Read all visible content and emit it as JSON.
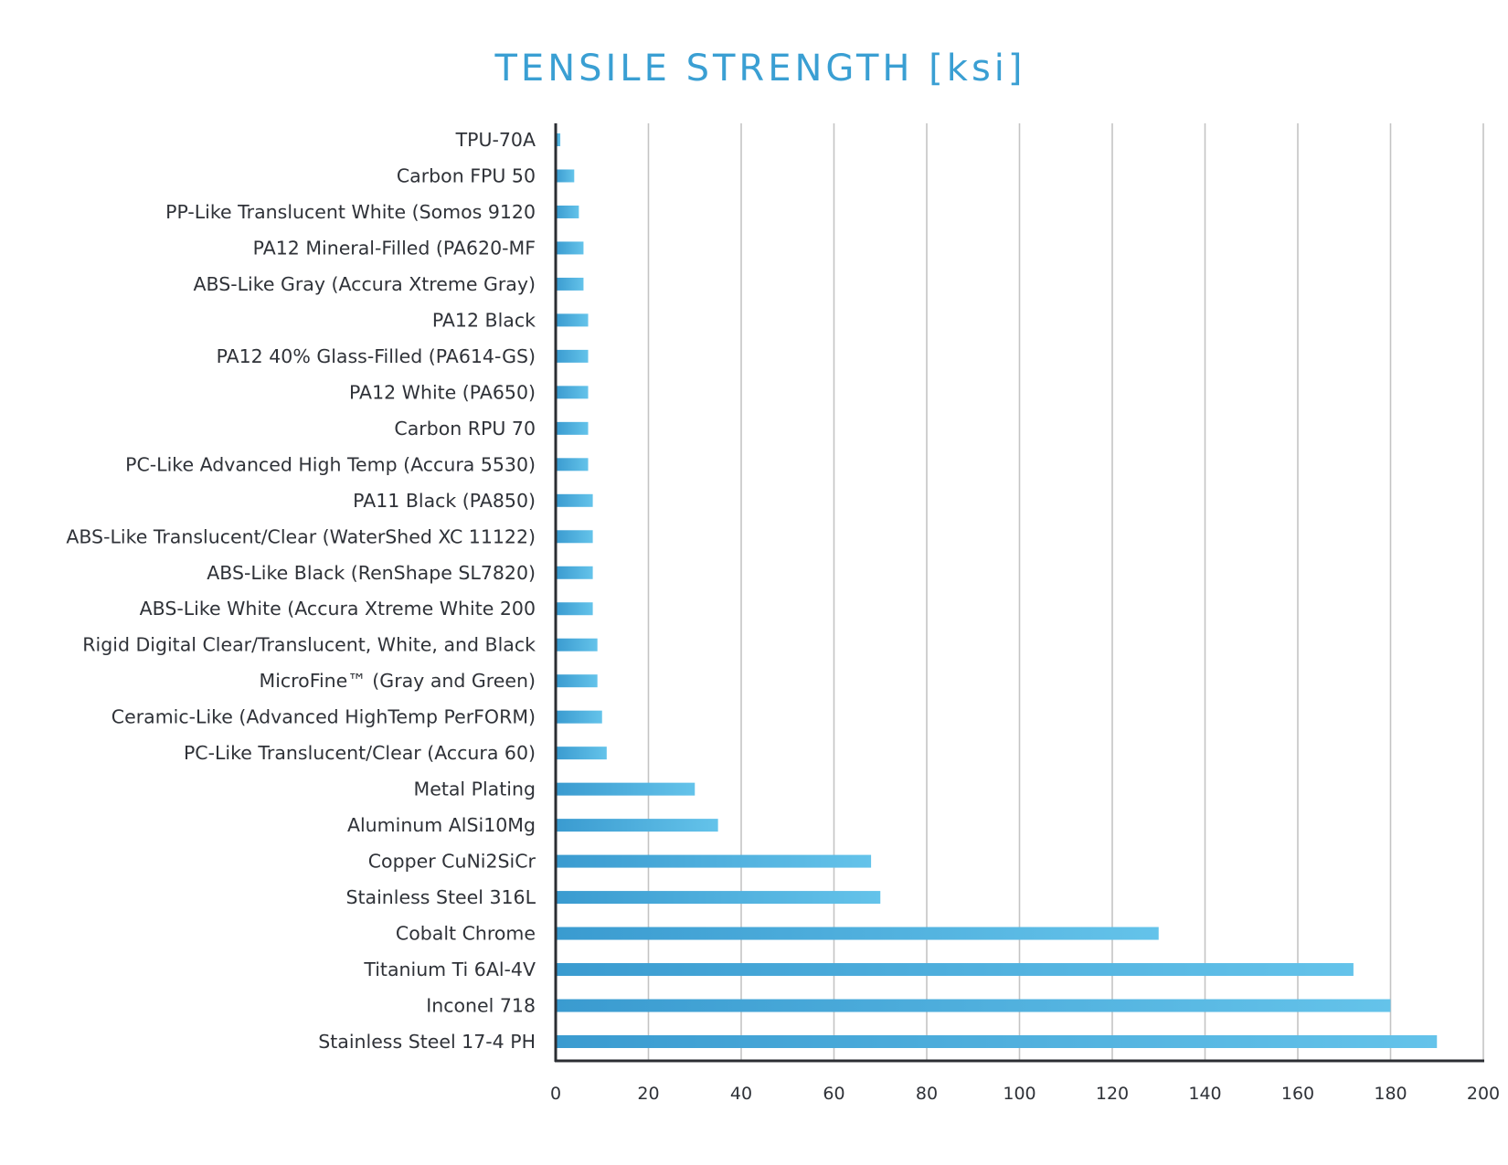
{
  "chart_data": {
    "type": "bar",
    "orientation": "horizontal",
    "title": "TENSILE STRENGTH [ksi]",
    "xlabel": "",
    "ylabel": "",
    "xlim": [
      0,
      200
    ],
    "x_ticks": [
      0,
      20,
      40,
      60,
      80,
      100,
      120,
      140,
      160,
      180,
      200
    ],
    "grid": "vertical",
    "legend": "none",
    "colors": {
      "bar_start": "#3a9bd0",
      "bar_end": "#64c3ea",
      "title": "#3a9fd3",
      "text": "#2f3238",
      "grid": "#c4c4c4",
      "axis": "#2b2e33"
    },
    "categories": [
      "TPU-70A",
      "Carbon FPU 50",
      "PP-Like Translucent White (Somos 9120",
      "PA12 Mineral-Filled (PA620-MF",
      "ABS-Like Gray (Accura Xtreme Gray)",
      "PA12 Black",
      "PA12 40% Glass-Filled (PA614-GS)",
      "PA12 White (PA650)",
      "Carbon RPU 70",
      "PC-Like Advanced High Temp (Accura 5530)",
      "PA11 Black (PA850)",
      "ABS-Like Translucent/Clear (WaterShed XC 11122)",
      "ABS-Like Black (RenShape SL7820)",
      "ABS-Like White (Accura Xtreme White 200",
      "Rigid Digital Clear/Translucent, White, and Black",
      "MicroFine™ (Gray and Green)",
      "Ceramic-Like (Advanced HighTemp PerFORM)",
      "PC-Like Translucent/Clear (Accura 60)",
      "Metal Plating",
      "Aluminum AlSi10Mg",
      "Copper CuNi2SiCr",
      "Stainless Steel 316L",
      "Cobalt Chrome",
      "Titanium Ti 6Al-4V",
      "Inconel 718",
      "Stainless Steel 17-4 PH"
    ],
    "values": [
      1,
      4,
      5,
      6,
      6,
      7,
      7,
      7,
      7,
      7,
      8,
      8,
      8,
      8,
      9,
      9,
      10,
      11,
      30,
      35,
      68,
      70,
      130,
      172,
      180,
      190
    ]
  }
}
